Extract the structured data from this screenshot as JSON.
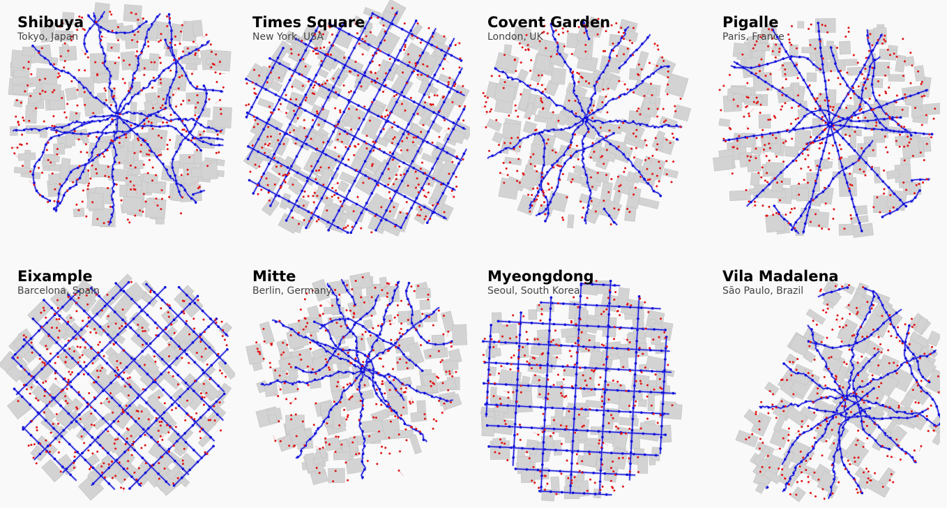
{
  "colors": {
    "background": "#f9f9f9",
    "building": "#d3d3d3",
    "building_outline": "#bdbdbd",
    "street_network": "#1010d8",
    "street_edge_light": "#8c8cf0",
    "building_nodes": "#e01515",
    "building_edge_light": "#f0a0a0"
  },
  "legend_semantics": {
    "blue": "street-network-icon",
    "red": "building-node-icon",
    "grey": "building-footprint-icon"
  },
  "panels": [
    {
      "city": "Shibuya",
      "country": "Tokyo, Japan",
      "layout": "organic",
      "angle": 0
    },
    {
      "city": "Times Square",
      "country": "New York, USA",
      "layout": "grid",
      "angle": -62
    },
    {
      "city": "Covent Garden",
      "country": "London, UK",
      "layout": "organic",
      "angle": 15
    },
    {
      "city": "Pigalle",
      "country": "Paris, France",
      "layout": "radial",
      "angle": 0
    },
    {
      "city": "Eixample",
      "country": "Barcelona, Spain",
      "layout": "grid",
      "angle": 45
    },
    {
      "city": "Mitte",
      "country": "Berlin, Germany",
      "layout": "organic",
      "angle": -10
    },
    {
      "city": "Myeongdong",
      "country": "Seoul, South Korea",
      "layout": "grid",
      "angle": 3
    },
    {
      "city": "Vila Madalena",
      "country": "São Paulo, Brazil",
      "layout": "organic",
      "angle": 30
    }
  ]
}
